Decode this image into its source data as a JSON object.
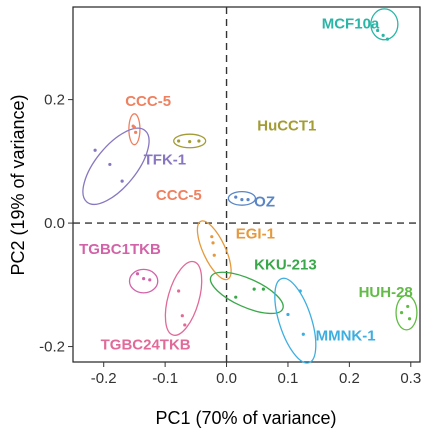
{
  "chart_data": {
    "type": "scatter",
    "xlabel": "PC1 (70% of variance)",
    "ylabel": "PC2 (19% of variance)",
    "xlim": [
      -0.25,
      0.315
    ],
    "ylim": [
      -0.225,
      0.35
    ],
    "x_ticks": [
      -0.2,
      -0.1,
      0.0,
      0.1,
      0.2,
      0.3
    ],
    "x_tick_labels": [
      "-0.2",
      "-0.1",
      "0.0",
      "0.1",
      "0.2",
      "0.3"
    ],
    "y_ticks": [
      -0.2,
      0.0,
      0.2
    ],
    "y_tick_labels": [
      "-0.2",
      "0.0",
      "0.2"
    ],
    "grid": false,
    "reference_lines": {
      "x": 0,
      "y": 0,
      "style": "dashed"
    },
    "groups": [
      {
        "name": "MCF10a",
        "color": "#2ab5a6",
        "label_pos": [
          0.155,
          0.315
        ],
        "points": [
          [
            0.246,
            0.312
          ],
          [
            0.262,
            0.298
          ],
          [
            0.255,
            0.304
          ]
        ],
        "ellipse": {
          "cx": 0.257,
          "cy": 0.322,
          "rx": 0.022,
          "ry": 0.025,
          "angle": 0
        }
      },
      {
        "name": "CCC-5",
        "color": "#ef8060",
        "label_pos": [
          -0.165,
          0.19
        ],
        "points": [
          [
            -0.152,
            0.157
          ],
          [
            -0.148,
            0.147
          ],
          [
            -0.15,
            0.155
          ]
        ],
        "ellipse": {
          "cx": -0.15,
          "cy": 0.152,
          "rx": 0.009,
          "ry": 0.025,
          "angle": 0
        }
      },
      {
        "name": "HuCCT1",
        "color": "#a39c35",
        "label_pos": [
          0.05,
          0.15
        ],
        "points": [
          [
            -0.078,
            0.133
          ],
          [
            -0.06,
            0.132
          ],
          [
            -0.045,
            0.133
          ]
        ],
        "ellipse": {
          "cx": -0.06,
          "cy": 0.133,
          "rx": 0.026,
          "ry": 0.011,
          "angle": 0
        }
      },
      {
        "name": "TFK-1",
        "color": "#8877c0",
        "label_pos": [
          -0.135,
          0.095
        ],
        "points": [
          [
            -0.214,
            0.118
          ],
          [
            -0.19,
            0.095
          ],
          [
            -0.17,
            0.068
          ]
        ],
        "ellipse": {
          "cx": -0.18,
          "cy": 0.092,
          "rx": 0.075,
          "ry": 0.033,
          "angle": 51
        }
      },
      {
        "name": "CCC-5",
        "color": "#ef8060",
        "label_pos": [
          -0.115,
          0.037
        ],
        "points": [],
        "ellipse": null
      },
      {
        "name": "OZ",
        "color": "#5a86c6",
        "label_pos": [
          0.045,
          0.027
        ],
        "points": [
          [
            0.015,
            0.042
          ],
          [
            0.025,
            0.038
          ],
          [
            0.035,
            0.038
          ]
        ],
        "ellipse": {
          "cx": 0.025,
          "cy": 0.04,
          "rx": 0.022,
          "ry": 0.011,
          "angle": 0
        }
      },
      {
        "name": "EGI-1",
        "color": "#e49a3c",
        "label_pos": [
          0.015,
          -0.025
        ],
        "points": [
          [
            -0.024,
            -0.022
          ],
          [
            -0.022,
            -0.032
          ],
          [
            -0.02,
            -0.052
          ]
        ],
        "ellipse": {
          "cx": -0.02,
          "cy": -0.044,
          "rx": 0.052,
          "ry": 0.018,
          "angle": -65
        }
      },
      {
        "name": "TGBC1TKB",
        "color": "#d263a8",
        "label_pos": [
          -0.24,
          -0.05
        ],
        "points": [
          [
            -0.145,
            -0.082
          ],
          [
            -0.135,
            -0.09
          ],
          [
            -0.125,
            -0.092
          ]
        ],
        "ellipse": {
          "cx": -0.135,
          "cy": -0.094,
          "rx": 0.023,
          "ry": 0.019,
          "angle": 0
        }
      },
      {
        "name": "KKU-213",
        "color": "#3aa84a",
        "label_pos": [
          0.045,
          -0.075
        ],
        "points": [
          [
            0.015,
            -0.12
          ],
          [
            0.045,
            -0.107
          ],
          [
            0.06,
            -0.107
          ]
        ],
        "ellipse": {
          "cx": 0.033,
          "cy": -0.113,
          "rx": 0.064,
          "ry": 0.023,
          "angle": -24
        }
      },
      {
        "name": "HUH-28",
        "color": "#62bb46",
        "label_pos": [
          0.215,
          -0.12
        ],
        "points": [
          [
            0.285,
            -0.145
          ],
          [
            0.295,
            -0.135
          ],
          [
            0.298,
            -0.155
          ]
        ],
        "ellipse": {
          "cx": 0.293,
          "cy": -0.145,
          "rx": 0.017,
          "ry": 0.028,
          "angle": 0
        }
      },
      {
        "name": "TGBC24TKB",
        "color": "#e16a99",
        "label_pos": [
          -0.205,
          -0.205
        ],
        "points": [
          [
            -0.078,
            -0.11
          ],
          [
            -0.072,
            -0.15
          ],
          [
            -0.068,
            -0.165
          ]
        ],
        "ellipse": {
          "cx": -0.07,
          "cy": -0.122,
          "rx": 0.062,
          "ry": 0.025,
          "angle": 74
        }
      },
      {
        "name": "MMNK-1",
        "color": "#3daee0",
        "label_pos": [
          0.145,
          -0.19
        ],
        "points": [
          [
            0.1,
            -0.148
          ],
          [
            0.125,
            -0.18
          ],
          [
            0.12,
            -0.11
          ]
        ],
        "ellipse": {
          "cx": 0.112,
          "cy": -0.158,
          "rx": 0.072,
          "ry": 0.026,
          "angle": -72
        }
      }
    ]
  }
}
